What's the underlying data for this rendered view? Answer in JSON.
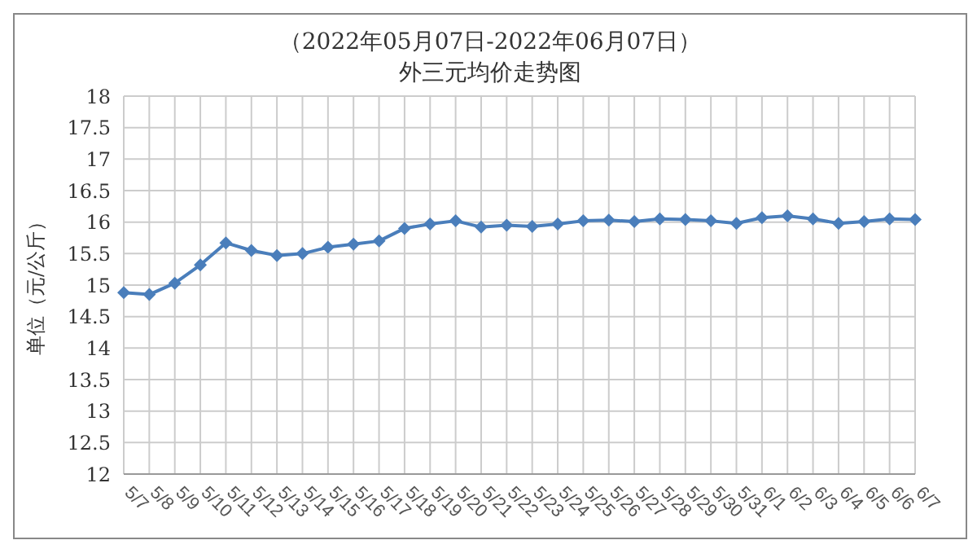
{
  "chart_data": {
    "type": "line",
    "title": "（2022年05月07日-2022年06月07日）",
    "subtitle": "外三元均价走势图",
    "ylabel": "单位（元/公斤）",
    "categories": [
      "5/7",
      "5/8",
      "5/9",
      "5/10",
      "5/11",
      "5/12",
      "5/13",
      "5/14",
      "5/15",
      "5/16",
      "5/17",
      "5/18",
      "5/19",
      "5/20",
      "5/21",
      "5/22",
      "5/23",
      "5/24",
      "5/25",
      "5/26",
      "5/27",
      "5/28",
      "5/29",
      "5/30",
      "5/31",
      "6/1",
      "6/2",
      "6/3",
      "6/4",
      "6/5",
      "6/6",
      "6/7"
    ],
    "series": [
      {
        "color": "#4a7ebb",
        "values": [
          14.88,
          14.85,
          15.03,
          15.32,
          15.67,
          15.55,
          15.47,
          15.5,
          15.6,
          15.65,
          15.7,
          15.9,
          15.97,
          16.02,
          15.92,
          15.95,
          15.93,
          15.97,
          16.02,
          16.03,
          16.01,
          16.05,
          16.04,
          16.02,
          15.98,
          16.07,
          16.1,
          16.05,
          15.98,
          16.01,
          16.05,
          16.04
        ]
      }
    ],
    "ylim": [
      12,
      18
    ],
    "yticks": [
      12,
      12.5,
      13,
      13.5,
      14,
      14.5,
      15,
      15.5,
      16,
      16.5,
      17,
      17.5,
      18
    ],
    "grid": true,
    "marker": "diamond"
  }
}
